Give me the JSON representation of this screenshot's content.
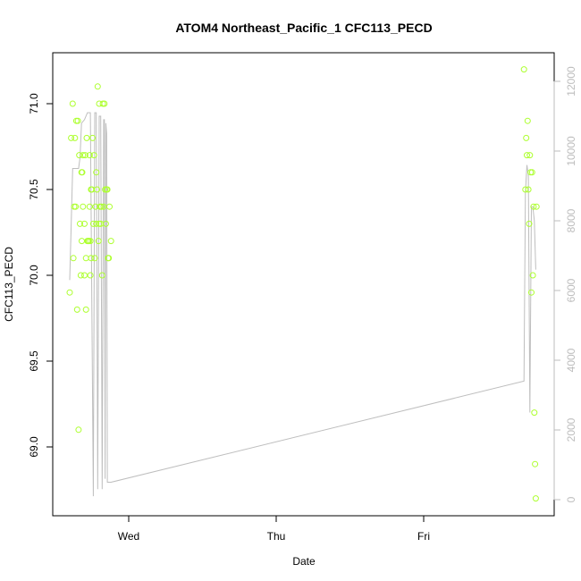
{
  "chart_data": {
    "type": "scatter",
    "title": "ATOM4 Northeast_Pacific_1 CFC113_PECD",
    "xlabel": "Date",
    "ylabel": "CFC113_PECD",
    "x_ticks": [
      "Wed",
      "Thu",
      "Fri"
    ],
    "ylim": [
      68.6,
      71.3
    ],
    "y_ticks": [
      "69.0",
      "69.5",
      "70.0",
      "70.5",
      "71.0"
    ],
    "y2lim": [
      -200,
      12600
    ],
    "y2_ticks": [
      "0",
      "2000",
      "4000",
      "6000",
      "8000",
      "10000",
      "12000"
    ],
    "legend": "none",
    "grid": false,
    "colors": {
      "points": "#adff2f",
      "line": "#bebebe"
    },
    "points": {
      "x": [
        -0.4,
        -0.39,
        -0.38,
        -0.375,
        -0.37,
        -0.365,
        -0.36,
        -0.355,
        -0.35,
        -0.34,
        -0.345,
        -0.335,
        -0.33,
        -0.325,
        -0.32,
        -0.318,
        -0.315,
        -0.31,
        -0.31,
        -0.3,
        -0.3,
        -0.295,
        -0.29,
        -0.29,
        -0.285,
        -0.28,
        -0.275,
        -0.27,
        -0.265,
        -0.265,
        -0.26,
        -0.26,
        -0.255,
        -0.255,
        -0.25,
        -0.245,
        -0.24,
        -0.235,
        -0.23,
        -0.225,
        -0.22,
        -0.22,
        -0.215,
        -0.21,
        -0.205,
        -0.2,
        -0.2,
        -0.195,
        -0.19,
        -0.185,
        -0.18,
        -0.175,
        -0.17,
        -0.165,
        -0.16,
        -0.155,
        -0.15,
        -0.145,
        -0.14,
        -0.135,
        -0.13,
        -0.12,
        2.68,
        2.69,
        2.695,
        2.7,
        2.705,
        2.71,
        2.715,
        2.72,
        2.725,
        2.73,
        2.735,
        2.74
      ],
      "y": [
        69.9,
        70.8,
        71.0,
        70.1,
        70.4,
        70.8,
        70.4,
        70.9,
        69.8,
        69.1,
        70.9,
        70.7,
        70.3,
        70.0,
        70.6,
        70.2,
        70.6,
        70.4,
        70.7,
        70.3,
        70.0,
        70.7,
        70.1,
        69.8,
        70.8,
        70.2,
        70.2,
        70.2,
        70.4,
        70.7,
        70.0,
        70.2,
        70.1,
        70.5,
        70.5,
        70.8,
        70.3,
        70.7,
        70.1,
        70.4,
        70.6,
        70.3,
        70.5,
        71.1,
        70.2,
        71.0,
        70.3,
        70.4,
        70.3,
        70.4,
        70.0,
        71.0,
        70.4,
        71.0,
        70.5,
        70.3,
        70.5,
        70.5,
        70.1,
        70.1,
        70.4,
        70.2,
        71.2,
        70.5,
        70.8,
        70.7,
        70.9,
        70.5,
        70.3,
        70.7,
        70.6,
        69.9,
        70.6,
        70.0
      ],
      "x_extra": [
        2.745,
        2.75,
        2.755,
        2.76,
        2.765
      ],
      "y_extra": [
        70.4,
        69.2,
        68.9,
        68.7,
        70.4
      ]
    },
    "line": {
      "x": [
        -0.4,
        -0.38,
        -0.36,
        -0.34,
        -0.33,
        -0.32,
        -0.3,
        -0.28,
        -0.26,
        -0.24,
        -0.23,
        -0.22,
        -0.21,
        -0.2,
        -0.19,
        -0.18,
        -0.17,
        -0.165,
        -0.16,
        -0.155,
        -0.15,
        -0.145,
        -0.14,
        -0.13,
        -0.12,
        2.68,
        2.69,
        2.7,
        2.71,
        2.72,
        2.73,
        2.74,
        2.75,
        2.76
      ],
      "y": [
        6300,
        9500,
        9500,
        9500,
        9800,
        10800,
        10900,
        11100,
        11100,
        100,
        11100,
        11100,
        300,
        11000,
        11000,
        300,
        10900,
        10900,
        600,
        10800,
        10500,
        500,
        500,
        500,
        500,
        3400,
        8800,
        9600,
        9300,
        2500,
        8400,
        8400,
        8000,
        6600
      ]
    }
  }
}
